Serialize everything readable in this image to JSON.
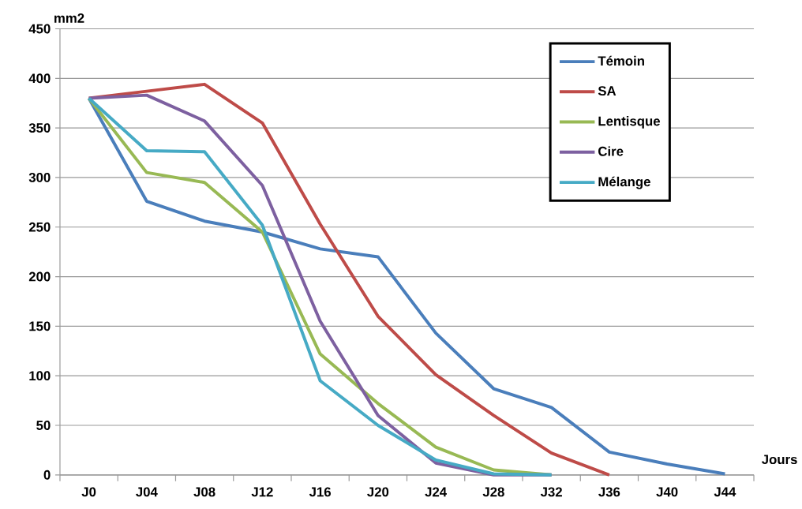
{
  "chart_data": {
    "type": "line",
    "xlabel": "Jours",
    "ylabel": "mm2",
    "categories": [
      "J0",
      "J04",
      "J08",
      "J12",
      "J16",
      "J20",
      "J24",
      "J28",
      "J32",
      "J36",
      "J40",
      "J44"
    ],
    "series": [
      {
        "name": "Témoin",
        "color": "#4a7ebb",
        "values": [
          380,
          276,
          256,
          245,
          228,
          220,
          143,
          87,
          68,
          23,
          11,
          1
        ]
      },
      {
        "name": "SA",
        "color": "#be4b48",
        "values": [
          380,
          387,
          394,
          355,
          253,
          160,
          101,
          60,
          22,
          0,
          null,
          null
        ]
      },
      {
        "name": "Lentisque",
        "color": "#98b954",
        "values": [
          380,
          305,
          295,
          245,
          122,
          72,
          28,
          5,
          0,
          null,
          null,
          null
        ]
      },
      {
        "name": "Cire",
        "color": "#7d60a0",
        "values": [
          380,
          383,
          357,
          292,
          155,
          60,
          12,
          0,
          0,
          null,
          null,
          null
        ]
      },
      {
        "name": "Mélange",
        "color": "#46aac5",
        "values": [
          380,
          327,
          326,
          252,
          95,
          50,
          15,
          1,
          0,
          null,
          null,
          null
        ]
      }
    ],
    "ylim": [
      0,
      450
    ],
    "yticks": [
      0,
      50,
      100,
      150,
      200,
      250,
      300,
      350,
      400,
      450
    ],
    "grid": "y",
    "legend": "top right",
    "marker": "none",
    "line_style": "solid"
  }
}
